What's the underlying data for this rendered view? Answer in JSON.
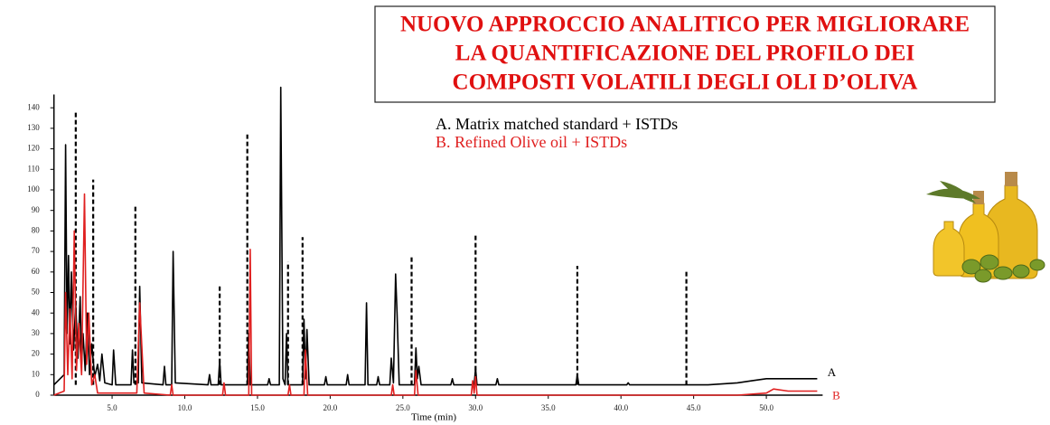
{
  "chart_data": {
    "type": "line",
    "title_lines": [
      "NUOVO APPROCCIO ANALITICO PER MIGLIORARE",
      "LA QUANTIFICAZIONE DEL PROFILO DEI",
      "COMPOSTI VOLATILI DEGLI OLI D’OLIVA"
    ],
    "x_label": "Time (min)",
    "xlim": [
      1,
      53.5
    ],
    "ylim": [
      0,
      150
    ],
    "xticks": [
      {
        "value": 5,
        "label": "5.0"
      },
      {
        "value": 10,
        "label": "10.0"
      },
      {
        "value": 15,
        "label": "15.0"
      },
      {
        "value": 20,
        "label": "20.0"
      },
      {
        "value": 25,
        "label": "25.0"
      },
      {
        "value": 30,
        "label": "30.0"
      },
      {
        "value": 35,
        "label": "35.0"
      },
      {
        "value": 40,
        "label": "40.0"
      },
      {
        "value": 45,
        "label": "45.0"
      },
      {
        "value": 50,
        "label": "50.0"
      }
    ],
    "yticks": [
      0,
      10,
      20,
      30,
      40,
      50,
      60,
      70,
      80,
      90,
      100,
      110,
      120,
      130,
      140
    ],
    "series": [
      {
        "name": "A. Matrix matched standard + ISTDs",
        "end_label": "A",
        "color": "#000000",
        "x": [
          1.0,
          1.7,
          1.8,
          1.9,
          2.0,
          2.1,
          2.2,
          2.35,
          2.5,
          2.65,
          2.8,
          2.9,
          3.0,
          3.15,
          3.3,
          3.45,
          3.6,
          3.8,
          4.0,
          4.15,
          4.3,
          4.5,
          5.0,
          5.1,
          5.25,
          6.3,
          6.4,
          6.5,
          6.8,
          6.9,
          7.05,
          8.5,
          8.6,
          8.7,
          9.1,
          9.2,
          9.35,
          11.6,
          11.7,
          11.8,
          12.3,
          12.4,
          12.5,
          14.3,
          14.4,
          14.5,
          15.7,
          15.8,
          15.9,
          16.5,
          16.6,
          16.75,
          16.9,
          17.0,
          17.1,
          18.1,
          18.2,
          18.3,
          18.4,
          18.55,
          19.6,
          19.7,
          19.8,
          21.1,
          21.2,
          21.3,
          22.4,
          22.5,
          22.6,
          23.2,
          23.3,
          23.4,
          24.1,
          24.2,
          24.35,
          24.5,
          24.6,
          24.75,
          25.8,
          25.9,
          26.0,
          26.1,
          26.25,
          28.3,
          28.4,
          28.5,
          29.9,
          30.0,
          30.1,
          31.4,
          31.5,
          31.6,
          36.9,
          37.0,
          37.1,
          40.4,
          40.5,
          40.6,
          46.0,
          48.0,
          49.0,
          50.0,
          51.0,
          53.5
        ],
        "values": [
          5,
          10,
          122,
          30,
          68,
          25,
          60,
          22,
          45,
          18,
          48,
          15,
          30,
          12,
          40,
          10,
          25,
          9,
          15,
          7,
          20,
          6,
          5,
          22,
          5,
          5,
          22,
          6,
          6,
          53,
          6,
          5,
          14,
          5,
          5,
          70,
          6,
          5,
          10,
          5,
          5,
          17,
          5,
          5,
          30,
          5,
          5,
          8,
          5,
          5,
          150,
          8,
          5,
          30,
          5,
          5,
          37,
          8,
          32,
          5,
          5,
          9,
          5,
          5,
          10,
          5,
          5,
          45,
          5,
          5,
          9,
          5,
          5,
          18,
          6,
          59,
          40,
          5,
          5,
          23,
          8,
          14,
          5,
          5,
          8,
          5,
          5,
          13,
          5,
          5,
          8,
          5,
          5,
          10,
          5,
          5,
          6,
          5,
          5,
          6,
          7,
          8,
          8,
          8
        ]
      },
      {
        "name": "B. Refined Olive oil + ISTDs",
        "end_label": "B",
        "color": "#e02020",
        "x": [
          1.0,
          1.7,
          1.8,
          1.95,
          2.1,
          2.25,
          2.4,
          2.55,
          2.7,
          2.9,
          3.1,
          3.25,
          3.4,
          3.6,
          3.8,
          4.0,
          6.7,
          6.9,
          7.2,
          9.0,
          9.1,
          9.2,
          12.6,
          12.7,
          12.8,
          14.4,
          14.5,
          14.6,
          17.1,
          17.2,
          17.3,
          18.2,
          18.3,
          18.45,
          24.2,
          24.3,
          24.4,
          25.8,
          25.9,
          26.05,
          29.7,
          29.8,
          29.9,
          30.0,
          30.1,
          48.0,
          50.0,
          50.5,
          51.5,
          53.5
        ],
        "values": [
          0,
          2,
          50,
          10,
          42,
          8,
          80,
          12,
          35,
          10,
          98,
          15,
          40,
          5,
          10,
          1,
          1,
          45,
          1,
          0,
          5,
          0,
          0,
          6,
          0,
          0,
          71,
          0,
          0,
          5,
          0,
          0,
          22,
          0,
          0,
          5,
          0,
          0,
          12,
          0,
          0,
          7,
          1,
          9,
          0,
          0,
          1,
          3,
          2,
          2
        ]
      }
    ],
    "istd_peaks": {
      "color": "#000000",
      "x": [
        2.5,
        3.7,
        6.6,
        12.4,
        14.3,
        17.1,
        18.1,
        25.6,
        30.0,
        37.0,
        44.5
      ],
      "values": [
        138,
        105,
        93,
        53,
        127,
        65,
        77,
        68,
        78,
        63,
        61
      ]
    }
  }
}
